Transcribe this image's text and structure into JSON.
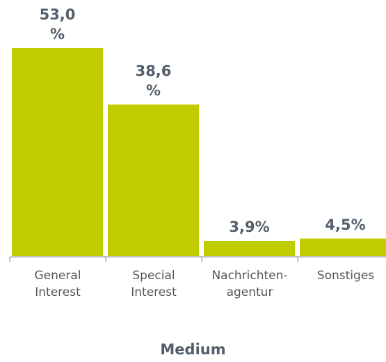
{
  "chart_data": {
    "type": "bar",
    "x_label": "Medium",
    "categories": [
      "General Interest",
      "Special Interest",
      "Nachrichten-agentur",
      "Sonstiges"
    ],
    "values": [
      53.0,
      38.6,
      3.9,
      4.5
    ],
    "value_labels": [
      "53,0 %",
      "38,6 %",
      "3,9%",
      "4,5%"
    ],
    "color": "#bfcc00"
  }
}
